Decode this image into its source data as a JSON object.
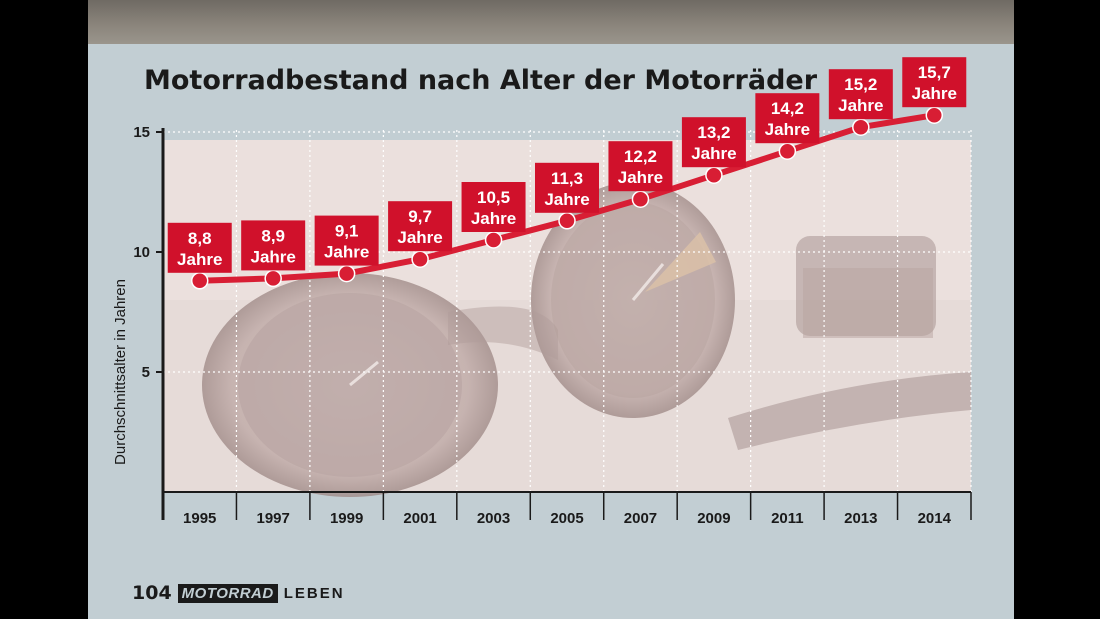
{
  "chart_data": {
    "type": "line",
    "title": "Motorradbestand nach Alter der Motorräder",
    "ylabel": "Durchschnittsalter in Jahren",
    "xlabel": "",
    "categories": [
      "1995",
      "1997",
      "1999",
      "2001",
      "2003",
      "2005",
      "2007",
      "2009",
      "2011",
      "2013",
      "2014"
    ],
    "values": [
      8.8,
      8.9,
      9.1,
      9.7,
      10.5,
      11.3,
      12.2,
      13.2,
      14.2,
      15.2,
      15.7
    ],
    "value_labels": [
      "8,8",
      "8,9",
      "9,1",
      "9,7",
      "10,5",
      "11,3",
      "12,2",
      "13,2",
      "14,2",
      "15,2",
      "15,7"
    ],
    "label_unit": "Jahre",
    "yticks": [
      "5",
      "10",
      "15"
    ],
    "ytick_values": [
      5,
      10,
      15
    ],
    "ylim": [
      0,
      15.9
    ],
    "grid": true,
    "line_color": "#d81e34",
    "label_bg": "#d0112b",
    "background_image": "motorcycle-speedometer-photo"
  },
  "footer": {
    "page_number": "104",
    "brand": "MOTORRAD",
    "section": "LEBEN"
  }
}
